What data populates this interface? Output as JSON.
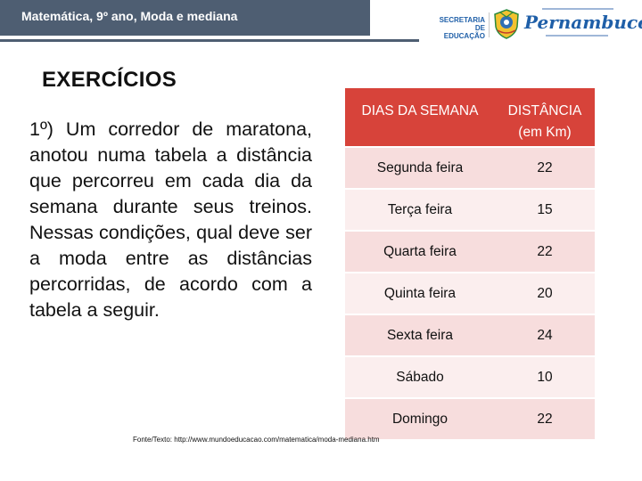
{
  "header": {
    "title": "Matemática, 9º ano, Moda e mediana",
    "secretaria_line1": "SECRETARIA",
    "secretaria_line2": "DE EDUCAÇÃO",
    "brand": "Pernambuco",
    "seal_icon": "pernambuco-seal-icon",
    "colors": {
      "bar": "#4e5e72",
      "brand": "#1f5fa8"
    }
  },
  "main": {
    "heading": "EXERCÍCIOS",
    "problem": "1º) Um corredor de maratona, anotou numa tabela a distância que percorreu em cada dia da semana durante seus treinos. Nessas condições, qual deve ser a moda entre as distâncias percorridas, de acordo com a tabela a seguir."
  },
  "table": {
    "header_day": "DIAS DA SEMANA",
    "header_dist_line1": "DISTÂNCIA",
    "header_dist_line2": "(em Km)",
    "colors": {
      "header": "#d7433a",
      "row_a": "#f7dddd",
      "row_b": "#fbeeee"
    },
    "rows": [
      {
        "day": "Segunda feira",
        "distance": "22"
      },
      {
        "day": "Terça feira",
        "distance": "15"
      },
      {
        "day": "Quarta feira",
        "distance": "22"
      },
      {
        "day": "Quinta feira",
        "distance": "20"
      },
      {
        "day": "Sexta feira",
        "distance": "24"
      },
      {
        "day": "Sábado",
        "distance": "10"
      },
      {
        "day": "Domingo",
        "distance": "22"
      }
    ]
  },
  "source": "Fonte/Texto: http://www.mundoeducacao.com/matematica/moda-mediana.htm"
}
